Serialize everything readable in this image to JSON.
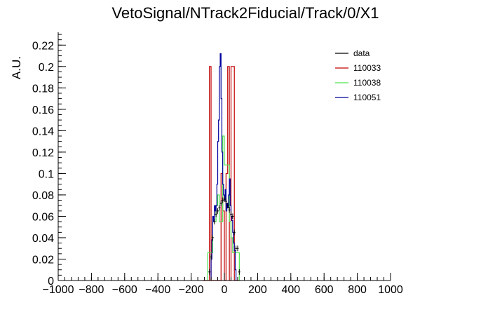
{
  "chart_data": {
    "type": "histogram",
    "title": "VetoSignal/NTrack2Fiducial/Track/0/X1",
    "xlabel": "",
    "ylabel": "A.U.",
    "xlim": [
      -1000,
      1000
    ],
    "ylim": [
      0,
      0.232
    ],
    "x_ticks": [
      -1000,
      -800,
      -600,
      -400,
      -200,
      0,
      200,
      400,
      600,
      800,
      1000
    ],
    "y_ticks": [
      0,
      0.02,
      0.04,
      0.06,
      0.08,
      0.1,
      0.12,
      0.14,
      0.16,
      0.18,
      0.2,
      0.22
    ],
    "x_tick_labels": [
      "−1000",
      "−800",
      "−600",
      "−400",
      "−200",
      "0",
      "200",
      "400",
      "600",
      "800",
      "1000"
    ],
    "y_tick_labels": [
      "0",
      "0.02",
      "0.04",
      "0.06",
      "0.08",
      "0.1",
      "0.12",
      "0.14",
      "0.16",
      "0.18",
      "0.2",
      "0.22"
    ],
    "legend_position": "top-right",
    "series": [
      {
        "name": "data",
        "color": "#000000",
        "style": "points",
        "x": [
          -90,
          -80,
          -70,
          -60,
          -50,
          -40,
          -30,
          -20,
          -10,
          0,
          10,
          20,
          30,
          40,
          50,
          60,
          70,
          80,
          90
        ],
        "values": [
          0.008,
          0.022,
          0.04,
          0.055,
          0.062,
          0.065,
          0.068,
          0.072,
          0.075,
          0.076,
          0.074,
          0.07,
          0.066,
          0.062,
          0.06,
          0.045,
          0.03,
          0.03,
          0.008
        ]
      },
      {
        "name": "110033",
        "color": "#c00000",
        "style": "step",
        "bin_edges": [
          -130,
          -110,
          -100,
          -90,
          -80,
          -70,
          -60,
          -50,
          -40,
          -30,
          -20,
          -10,
          0,
          10,
          20,
          30,
          40,
          50,
          60,
          70,
          90
        ],
        "values": [
          0,
          0,
          0,
          0.2,
          0,
          0,
          0,
          0,
          0,
          0,
          0.1,
          0.065,
          0,
          0.1,
          0.2,
          0,
          0.2,
          0.2,
          0,
          0
        ]
      },
      {
        "name": "110038",
        "color": "#4ee44e",
        "style": "step",
        "bin_edges": [
          -100,
          -90,
          -80,
          -70,
          -60,
          -50,
          -40,
          -30,
          -20,
          -10,
          0,
          10,
          20,
          30,
          40,
          50,
          60,
          70,
          80,
          90,
          100
        ],
        "values": [
          0.026,
          0.026,
          0.026,
          0.055,
          0.055,
          0.07,
          0.08,
          0.055,
          0.055,
          0.135,
          0.108,
          0.108,
          0.108,
          0.055,
          0.04,
          0.026,
          0.026,
          0.026,
          0.026,
          0
        ]
      },
      {
        "name": "110051",
        "color": "#00009c",
        "style": "step",
        "bin_edges": [
          -80,
          -75,
          -70,
          -65,
          -60,
          -55,
          -50,
          -45,
          -40,
          -35,
          -30,
          -25,
          -20,
          -15,
          -10,
          -5,
          0,
          5,
          10,
          15,
          20,
          25,
          30,
          35,
          40,
          45,
          50,
          55,
          60,
          65,
          70
        ],
        "values": [
          0.02,
          0.038,
          0.06,
          0.055,
          0.07,
          0.065,
          0.07,
          0.09,
          0.13,
          0.15,
          0.2,
          0.212,
          0.17,
          0.12,
          0.09,
          0.08,
          0.075,
          0.085,
          0.065,
          0.072,
          0.068,
          0.08,
          0.095,
          0.07,
          0.06,
          0.056,
          0.045,
          0.035,
          0.028,
          0.01
        ]
      }
    ]
  }
}
